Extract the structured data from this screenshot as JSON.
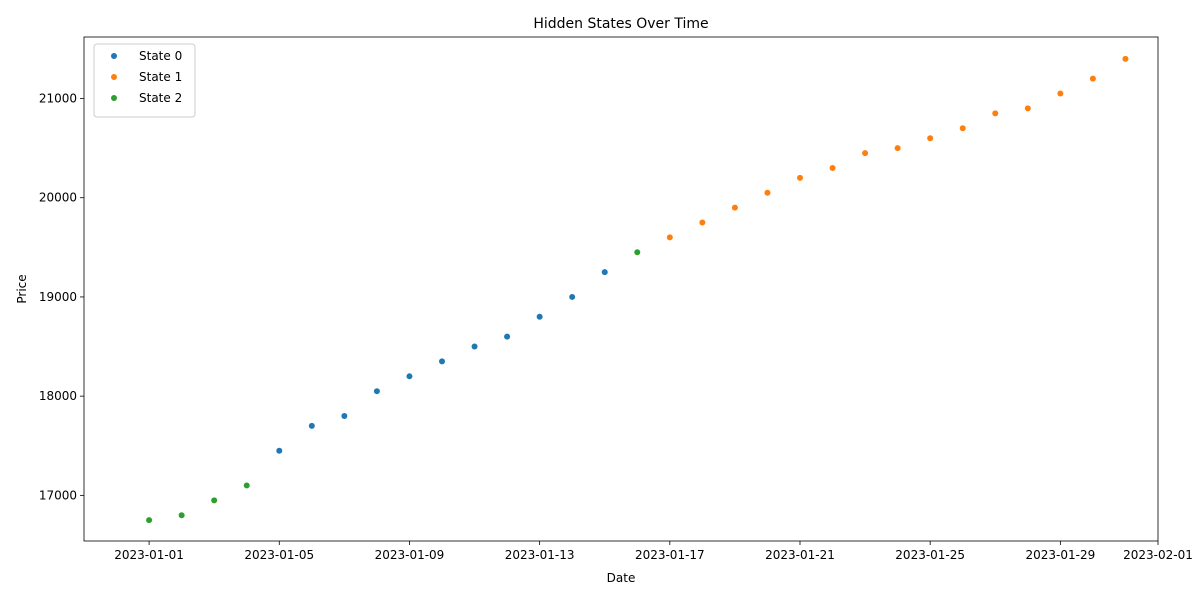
{
  "chart_data": {
    "type": "scatter",
    "title": "Hidden States Over Time",
    "xlabel": "Date",
    "ylabel": "Price",
    "legend_position": "top-left",
    "grid": false,
    "x_range": [
      "2022-12-30",
      "2023-02-01"
    ],
    "ylim": [
      16540,
      21620
    ],
    "x_ticks": [
      "2023-01-01",
      "2023-01-05",
      "2023-01-09",
      "2023-01-13",
      "2023-01-17",
      "2023-01-21",
      "2023-01-25",
      "2023-01-29",
      "2023-02-01"
    ],
    "y_ticks": [
      17000,
      18000,
      19000,
      20000,
      21000
    ],
    "series": [
      {
        "name": "State 0",
        "color": "#1f77b4",
        "points": [
          [
            "2023-01-05",
            17450
          ],
          [
            "2023-01-06",
            17700
          ],
          [
            "2023-01-07",
            17800
          ],
          [
            "2023-01-08",
            18050
          ],
          [
            "2023-01-09",
            18200
          ],
          [
            "2023-01-10",
            18350
          ],
          [
            "2023-01-11",
            18500
          ],
          [
            "2023-01-12",
            18600
          ],
          [
            "2023-01-13",
            18800
          ],
          [
            "2023-01-14",
            19000
          ],
          [
            "2023-01-15",
            19250
          ]
        ]
      },
      {
        "name": "State 1",
        "color": "#ff7f0e",
        "points": [
          [
            "2023-01-17",
            19600
          ],
          [
            "2023-01-18",
            19750
          ],
          [
            "2023-01-19",
            19900
          ],
          [
            "2023-01-20",
            20050
          ],
          [
            "2023-01-21",
            20200
          ],
          [
            "2023-01-22",
            20300
          ],
          [
            "2023-01-23",
            20450
          ],
          [
            "2023-01-24",
            20500
          ],
          [
            "2023-01-25",
            20600
          ],
          [
            "2023-01-26",
            20700
          ],
          [
            "2023-01-27",
            20850
          ],
          [
            "2023-01-28",
            20900
          ],
          [
            "2023-01-29",
            21050
          ],
          [
            "2023-01-30",
            21200
          ],
          [
            "2023-01-31",
            21400
          ]
        ]
      },
      {
        "name": "State 2",
        "color": "#2ca02c",
        "points": [
          [
            "2023-01-01",
            16750
          ],
          [
            "2023-01-02",
            16800
          ],
          [
            "2023-01-03",
            16950
          ],
          [
            "2023-01-04",
            17100
          ],
          [
            "2023-01-16",
            19450
          ]
        ]
      }
    ]
  }
}
